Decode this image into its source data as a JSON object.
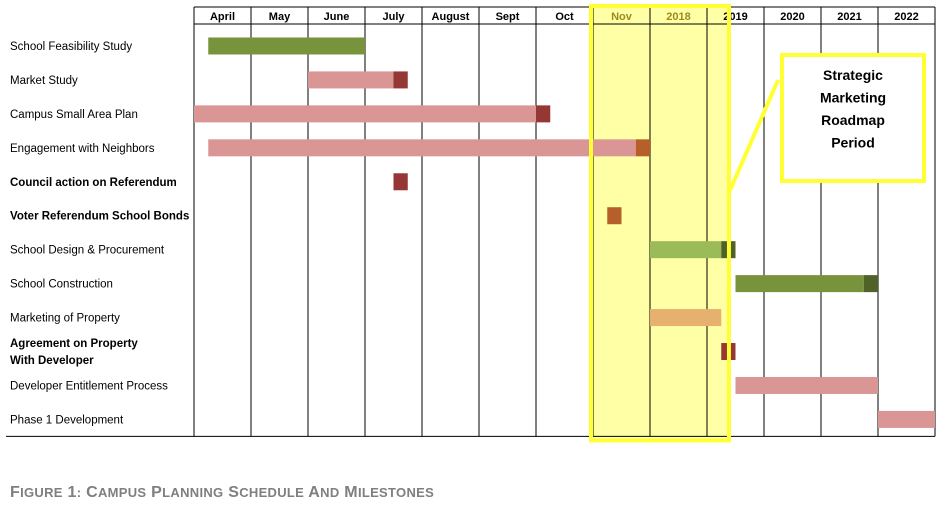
{
  "chart_data": {
    "type": "gantt",
    "columns": [
      "April",
      "May",
      "June",
      "July",
      "August",
      "Sept",
      "Oct",
      "Nov",
      "2018",
      "2019",
      "2020",
      "2021",
      "2022"
    ],
    "rows": [
      {
        "label": "School Feasibility Study",
        "bold": false,
        "bars": [
          {
            "start": 0.25,
            "end": 3.0,
            "color": "#77933c"
          }
        ]
      },
      {
        "label": "Market Study",
        "bold": false,
        "bars": [
          {
            "start": 2.0,
            "end": 3.5,
            "color": "#da9694"
          },
          {
            "start": 3.5,
            "end": 3.75,
            "color": "#953735"
          }
        ]
      },
      {
        "label": "Campus Small Area Plan",
        "bold": false,
        "bars": [
          {
            "start": 0.0,
            "end": 6.0,
            "color": "#da9694"
          },
          {
            "start": 6.0,
            "end": 6.25,
            "color": "#953735"
          }
        ]
      },
      {
        "label": "Engagement with Neighbors",
        "bold": false,
        "bars": [
          {
            "start": 0.25,
            "end": 7.75,
            "color": "#da9694"
          },
          {
            "start": 7.75,
            "end": 8.0,
            "color": "#b65f2a"
          }
        ]
      },
      {
        "label": "Council action on Referendum",
        "bold": true,
        "bars": [
          {
            "start": 3.5,
            "end": 3.75,
            "color": "#953735"
          }
        ]
      },
      {
        "label": "Voter Referendum School Bonds",
        "bold": true,
        "bars": [
          {
            "start": 7.25,
            "end": 7.5,
            "color": "#b65f2a"
          }
        ]
      },
      {
        "label": "School Design & Procurement",
        "bold": false,
        "bars": [
          {
            "start": 8.0,
            "end": 9.25,
            "color": "#9bbb59"
          },
          {
            "start": 9.25,
            "end": 9.5,
            "color": "#4f6228"
          }
        ]
      },
      {
        "label": "School Construction",
        "bold": false,
        "bars": [
          {
            "start": 9.5,
            "end": 11.75,
            "color": "#77933c"
          },
          {
            "start": 11.75,
            "end": 12.0,
            "color": "#4f6228"
          }
        ]
      },
      {
        "label": "Marketing of Property",
        "bold": false,
        "bars": [
          {
            "start": 8.0,
            "end": 9.25,
            "color": "#e6b06e"
          }
        ]
      },
      {
        "label": "Agreement on Property\nWith Developer",
        "bold": true,
        "bars": [
          {
            "start": 9.25,
            "end": 9.5,
            "color": "#953735"
          }
        ]
      },
      {
        "label": "Developer Entitlement Process",
        "bold": false,
        "bars": [
          {
            "start": 9.5,
            "end": 12.0,
            "color": "#da9694"
          }
        ]
      },
      {
        "label": "Phase 1 Development",
        "bold": false,
        "bars": [
          {
            "start": 12.0,
            "end": 13.0,
            "color": "#da9694"
          }
        ]
      }
    ],
    "highlight": {
      "start": 7.0,
      "end": 9.35,
      "fill": "#ffffa6",
      "stroke": "#ffff33"
    },
    "callout": {
      "lines": [
        "Strategic",
        "Marketing",
        "Roadmap",
        "Period"
      ],
      "stroke": "#ffff33"
    },
    "highlight_label_color": "#9c8a1e",
    "grid": true
  },
  "caption": {
    "number": "Figure 1:",
    "title": "Campus Planning Schedule and Milestones",
    "color": "#7f7f7f"
  }
}
